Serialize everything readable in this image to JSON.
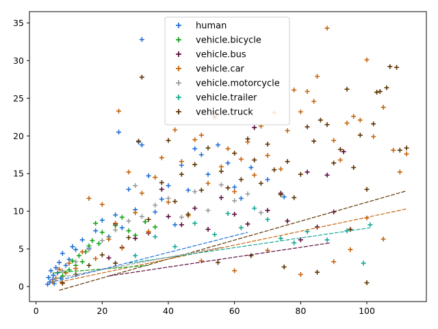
{
  "chart_data": {
    "type": "scatter",
    "title": "",
    "xlabel": "",
    "ylabel": "",
    "xlim": [
      -2,
      118
    ],
    "ylim": [
      -2,
      36.5
    ],
    "xticks": [
      0,
      20,
      40,
      60,
      80,
      100
    ],
    "yticks": [
      0,
      5,
      10,
      15,
      20,
      25,
      30,
      35
    ],
    "grid": false,
    "legend_position": "top-center",
    "marker": "+",
    "series": [
      {
        "name": "human",
        "color": "#1f6fd6",
        "points": [
          [
            3.5,
            0.3
          ],
          [
            3.8,
            1.2
          ],
          [
            4.2,
            0.6
          ],
          [
            4.5,
            2.1
          ],
          [
            5,
            0.9
          ],
          [
            5.2,
            1.5
          ],
          [
            5.5,
            0.4
          ],
          [
            6,
            2.5
          ],
          [
            6.5,
            1.8
          ],
          [
            7,
            3.2
          ],
          [
            7.5,
            1.1
          ],
          [
            8,
            4.4
          ],
          [
            9,
            2.8
          ],
          [
            10,
            3.6
          ],
          [
            11,
            5.3
          ],
          [
            12,
            4.9
          ],
          [
            14,
            6.2
          ],
          [
            16,
            5.1
          ],
          [
            18,
            7.4
          ],
          [
            20,
            8.8
          ],
          [
            22,
            6.6
          ],
          [
            24,
            9.5
          ],
          [
            25,
            20.5
          ],
          [
            26,
            7.8
          ],
          [
            28,
            12.9
          ],
          [
            30,
            10.2
          ],
          [
            31,
            19.2
          ],
          [
            32,
            18.8
          ],
          [
            32,
            32.8
          ],
          [
            34,
            14.7
          ],
          [
            36,
            9.9
          ],
          [
            38,
            11.6
          ],
          [
            40,
            13.4
          ],
          [
            42,
            8.2
          ],
          [
            44,
            16.1
          ],
          [
            46,
            12.8
          ],
          [
            48,
            18.3
          ],
          [
            50,
            17.5
          ],
          [
            52,
            14.9
          ],
          [
            55,
            18.8
          ],
          [
            58,
            16.4
          ],
          [
            60,
            13.2
          ],
          [
            62,
            11.7
          ],
          [
            65,
            15.8
          ],
          [
            70,
            14.2
          ],
          [
            75,
            11.9
          ]
        ]
      },
      {
        "name": "vehicle.bicycle",
        "color": "#12a31a",
        "points": [
          [
            8,
            1.4
          ],
          [
            10,
            2.2
          ],
          [
            11,
            3.4
          ],
          [
            12,
            2.8
          ],
          [
            13,
            4.1
          ],
          [
            14,
            3.3
          ],
          [
            15,
            4.6
          ],
          [
            16,
            5.4
          ],
          [
            17,
            6.1
          ],
          [
            18,
            8.4
          ],
          [
            19,
            5.7
          ],
          [
            20,
            7.2
          ],
          [
            22,
            6.3
          ],
          [
            24,
            8.1
          ],
          [
            26,
            9.2
          ],
          [
            28,
            7.4
          ],
          [
            30,
            6.8
          ],
          [
            33,
            8.6
          ],
          [
            36,
            7.9
          ]
        ]
      },
      {
        "name": "vehicle.bus",
        "color": "#5a0a3c",
        "points": [
          [
            22,
            3.8
          ],
          [
            24,
            8.3
          ],
          [
            26,
            5.2
          ],
          [
            30,
            6.4
          ],
          [
            34,
            7.1
          ],
          [
            38,
            12.9
          ],
          [
            40,
            9.3
          ],
          [
            44,
            8.2
          ],
          [
            48,
            10.4
          ],
          [
            52,
            7.6
          ],
          [
            56,
            11.8
          ],
          [
            60,
            9.6
          ],
          [
            64,
            8.3
          ],
          [
            66,
            21.1
          ],
          [
            70,
            10.1
          ],
          [
            74,
            12.4
          ],
          [
            76,
            8.7
          ],
          [
            80,
            6.2
          ],
          [
            82,
            15.2
          ],
          [
            85,
            7.9
          ],
          [
            88,
            14.8
          ],
          [
            90,
            9.9
          ],
          [
            93,
            17.9
          ]
        ]
      },
      {
        "name": "vehicle.car",
        "color": "#c4640a",
        "points": [
          [
            5,
            0.6
          ],
          [
            6,
            1.1
          ],
          [
            7,
            2.3
          ],
          [
            8,
            0.4
          ],
          [
            9,
            1.8
          ],
          [
            10,
            3.1
          ],
          [
            12,
            2.4
          ],
          [
            14,
            4.6
          ],
          [
            16,
            11.7
          ],
          [
            18,
            3.7
          ],
          [
            20,
            10.9
          ],
          [
            22,
            6.3
          ],
          [
            24,
            8.4
          ],
          [
            25,
            23.3
          ],
          [
            26,
            5.1
          ],
          [
            28,
            15.2
          ],
          [
            30,
            9.8
          ],
          [
            32,
            12.4
          ],
          [
            34,
            7.3
          ],
          [
            36,
            14.5
          ],
          [
            38,
            17.1
          ],
          [
            40,
            11.2
          ],
          [
            42,
            20.8
          ],
          [
            44,
            16.6
          ],
          [
            46,
            9.4
          ],
          [
            48,
            19.5
          ],
          [
            50,
            20.1
          ],
          [
            52,
            13.7
          ],
          [
            54,
            22.4
          ],
          [
            56,
            15.9
          ],
          [
            58,
            18.3
          ],
          [
            60,
            12.6
          ],
          [
            62,
            16.9
          ],
          [
            64,
            19.2
          ],
          [
            66,
            14.8
          ],
          [
            68,
            21.3
          ],
          [
            70,
            17.4
          ],
          [
            72,
            23.1
          ],
          [
            74,
            15.6
          ],
          [
            76,
            20.7
          ],
          [
            78,
            26.1
          ],
          [
            80,
            23.2
          ],
          [
            82,
            25.9
          ],
          [
            84,
            24.6
          ],
          [
            85,
            27.9
          ],
          [
            88,
            34.3
          ],
          [
            90,
            19.4
          ],
          [
            92,
            16.8
          ],
          [
            94,
            21.7
          ],
          [
            96,
            22.6
          ],
          [
            98,
            22.1
          ],
          [
            100,
            30.1
          ],
          [
            102,
            19.9
          ],
          [
            105,
            23.8
          ],
          [
            108,
            18.1
          ],
          [
            110,
            15.2
          ],
          [
            112,
            17.6
          ],
          [
            50,
            3.4
          ],
          [
            60,
            2.1
          ],
          [
            70,
            4.8
          ],
          [
            80,
            1.6
          ],
          [
            90,
            3.3
          ],
          [
            100,
            9.1
          ],
          [
            105,
            6.3
          ],
          [
            95,
            4.9
          ]
        ]
      },
      {
        "name": "vehicle.motorcycle",
        "color": "#9a9a9a",
        "points": [
          [
            8,
            2.1
          ],
          [
            12,
            3.3
          ],
          [
            16,
            4.9
          ],
          [
            20,
            6.1
          ],
          [
            24,
            7.5
          ],
          [
            28,
            8.7
          ],
          [
            30,
            13.4
          ],
          [
            32,
            9.3
          ],
          [
            36,
            10.8
          ],
          [
            40,
            11.7
          ],
          [
            44,
            9.2
          ],
          [
            48,
            12.6
          ],
          [
            52,
            10.1
          ],
          [
            56,
            13.5
          ],
          [
            60,
            11.4
          ],
          [
            64,
            12.3
          ],
          [
            68,
            9.8
          ]
        ]
      },
      {
        "name": "vehicle.trailer",
        "color": "#13a795",
        "points": [
          [
            30,
            4.1
          ],
          [
            36,
            6.6
          ],
          [
            42,
            5.3
          ],
          [
            48,
            8.4
          ],
          [
            54,
            6.9
          ],
          [
            58,
            9.7
          ],
          [
            62,
            7.8
          ],
          [
            66,
            10.4
          ],
          [
            70,
            8.9
          ],
          [
            74,
            6.4
          ],
          [
            78,
            5.8
          ],
          [
            82,
            7.3
          ],
          [
            88,
            6.2
          ],
          [
            94,
            7.4
          ],
          [
            99,
            3.1
          ],
          [
            101,
            8.2
          ]
        ]
      },
      {
        "name": "vehicle.truck",
        "color": "#5c3300",
        "points": [
          [
            8,
            0.5
          ],
          [
            12,
            1.6
          ],
          [
            16,
            2.8
          ],
          [
            20,
            4.2
          ],
          [
            24,
            3.1
          ],
          [
            28,
            6.5
          ],
          [
            31,
            19.3
          ],
          [
            32,
            27.8
          ],
          [
            34,
            8.9
          ],
          [
            38,
            13.8
          ],
          [
            40,
            19.4
          ],
          [
            42,
            11.3
          ],
          [
            44,
            14.9
          ],
          [
            46,
            9.6
          ],
          [
            48,
            16.2
          ],
          [
            50,
            12.8
          ],
          [
            52,
            18.4
          ],
          [
            54,
            22.6
          ],
          [
            56,
            15.3
          ],
          [
            58,
            13.1
          ],
          [
            60,
            17.7
          ],
          [
            62,
            14.2
          ],
          [
            64,
            19.6
          ],
          [
            66,
            16.8
          ],
          [
            68,
            13.7
          ],
          [
            70,
            18.9
          ],
          [
            72,
            15.5
          ],
          [
            74,
            12.2
          ],
          [
            76,
            16.6
          ],
          [
            78,
            11.8
          ],
          [
            80,
            14.9
          ],
          [
            82,
            21.2
          ],
          [
            84,
            19.3
          ],
          [
            86,
            22.1
          ],
          [
            88,
            21.5
          ],
          [
            90,
            16.4
          ],
          [
            92,
            18.2
          ],
          [
            94,
            26.2
          ],
          [
            96,
            15.8
          ],
          [
            98,
            20.1
          ],
          [
            100,
            0.5
          ],
          [
            100,
            12.9
          ],
          [
            102,
            21.6
          ],
          [
            103,
            25.8
          ],
          [
            104,
            25.9
          ],
          [
            106,
            26.4
          ],
          [
            107,
            29.2
          ],
          [
            109,
            29.1
          ],
          [
            110,
            18.1
          ],
          [
            112,
            18.4
          ],
          [
            55,
            3.2
          ],
          [
            65,
            4.1
          ],
          [
            75,
            2.6
          ],
          [
            85,
            1.9
          ],
          [
            95,
            7.6
          ]
        ]
      }
    ],
    "trend_lines": [
      {
        "series": "vehicle.truck",
        "color": "#5c3300",
        "x": [
          7,
          112
        ],
        "y": [
          -0.5,
          12.7
        ]
      },
      {
        "series": "vehicle.car",
        "color": "#c4640a",
        "x": [
          7,
          112
        ],
        "y": [
          0.6,
          10.3
        ]
      },
      {
        "series": "vehicle.trailer",
        "color": "#13a795",
        "x": [
          28,
          101
        ],
        "y": [
          3.1,
          7.8
        ]
      },
      {
        "series": "vehicle.bus",
        "color": "#5a0a3c",
        "x": [
          22,
          89
        ],
        "y": [
          1.4,
          5.8
        ]
      },
      {
        "series": "vehicle.bicycle",
        "color": "#12a31a",
        "x": [
          5,
          34
        ],
        "y": [
          1.8,
          2.8
        ]
      },
      {
        "series": "vehicle.motorcycle",
        "color": "#9a9a9a",
        "x": [
          6,
          56
        ],
        "y": [
          1.1,
          5.2
        ]
      },
      {
        "series": "human",
        "color": "#1f6fd6",
        "x": [
          4,
          64
        ],
        "y": [
          0.5,
          7.2
        ]
      }
    ]
  }
}
